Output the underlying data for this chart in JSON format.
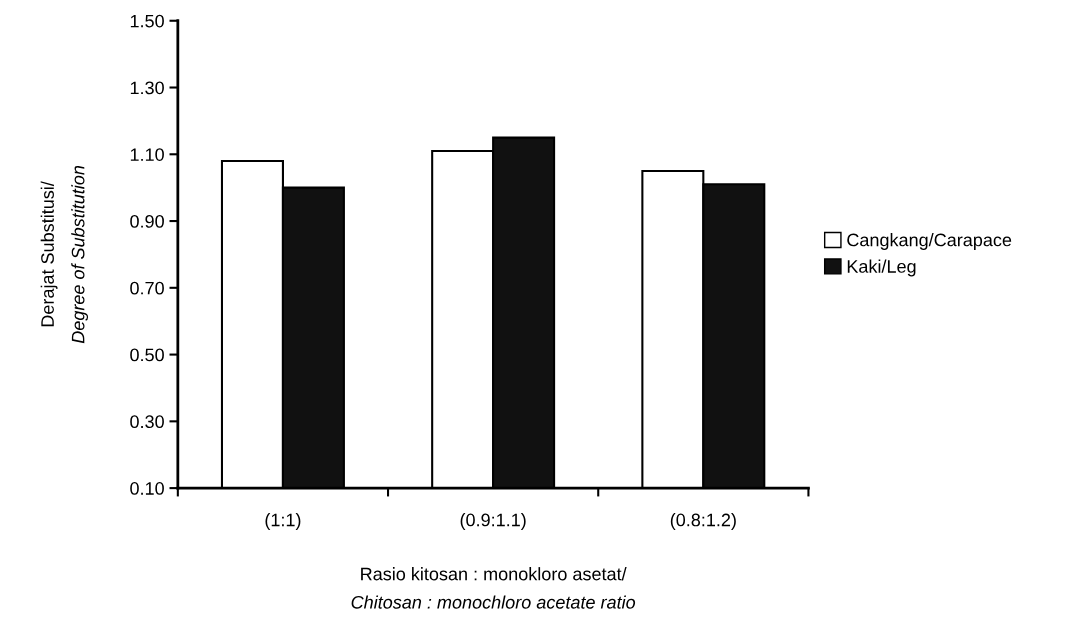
{
  "chart_data": {
    "type": "bar",
    "xlabel": "Rasio kitosan : monokloro asetat/\nChitosan : monochloro acetate ratio",
    "ylabel": "Derajat Substitusi/\nDegree of Substitution",
    "categories": [
      "(1:1)",
      "(0.9:1.1)",
      "(0.8:1.2)"
    ],
    "series": [
      {
        "name": "Cangkang/Carapace",
        "color": "#ffffff",
        "values": [
          1.08,
          1.11,
          1.05
        ]
      },
      {
        "name": "Kaki/Leg",
        "color": "#111111",
        "values": [
          1.0,
          1.15,
          1.01
        ]
      }
    ],
    "ylim": [
      0.1,
      1.5
    ],
    "yticks": [
      {
        "value": 0.1,
        "label": "0.10"
      },
      {
        "value": 0.3,
        "label": "0.30"
      },
      {
        "value": 0.5,
        "label": "0.50"
      },
      {
        "value": 0.7,
        "label": "0.70"
      },
      {
        "value": 0.9,
        "label": "0.90"
      },
      {
        "value": 1.1,
        "label": "1.10"
      },
      {
        "value": 1.3,
        "label": "1.30"
      },
      {
        "value": 1.5,
        "label": "1.50"
      }
    ],
    "legend": "right",
    "grid": false
  }
}
